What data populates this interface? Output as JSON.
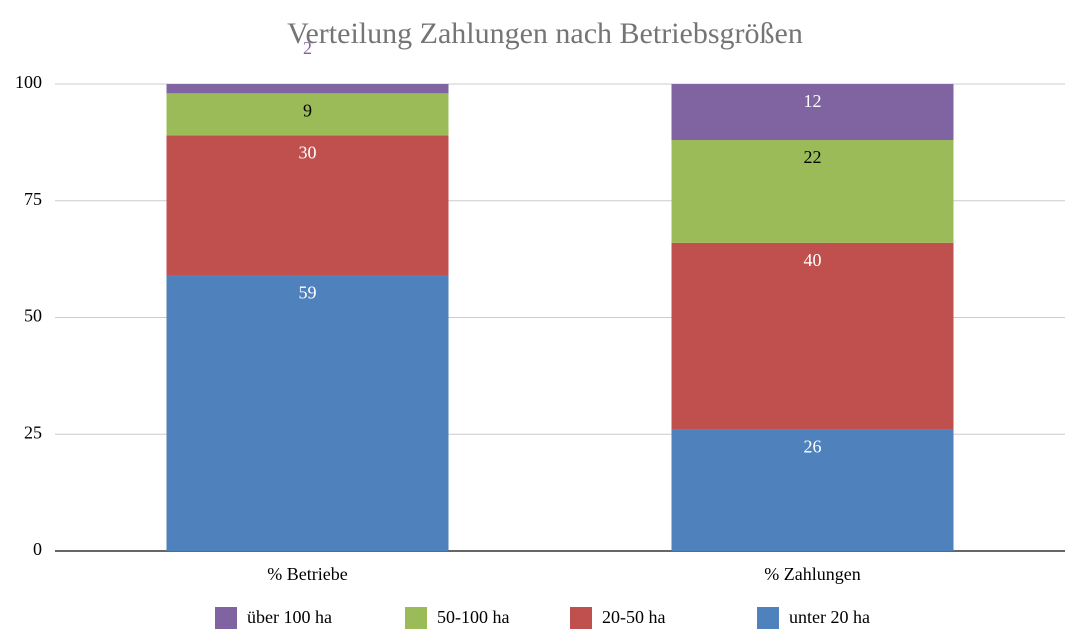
{
  "chart_data": {
    "type": "stacked_bar",
    "title": "Verteilung Zahlungen nach Betriebsgrößen",
    "categories": [
      "% Betriebe",
      "% Zahlungen"
    ],
    "series": [
      {
        "name": "über 100 ha",
        "color": "#8064a2",
        "label_color": "#ffffff",
        "values": [
          2,
          12
        ]
      },
      {
        "name": "50-100 ha",
        "color": "#9bbb59",
        "label_color": "#000000",
        "values": [
          9,
          22
        ]
      },
      {
        "name": "20-50 ha",
        "color": "#c0504d",
        "label_color": "#ffffff",
        "values": [
          30,
          40
        ]
      },
      {
        "name": "unter 20 ha",
        "color": "#4f81bd",
        "label_color": "#ffffff",
        "values": [
          59,
          26
        ]
      }
    ],
    "ylim": [
      0,
      100
    ],
    "yticks": [
      0,
      25,
      50,
      75,
      100
    ],
    "grid": true,
    "legend": "bottom"
  }
}
